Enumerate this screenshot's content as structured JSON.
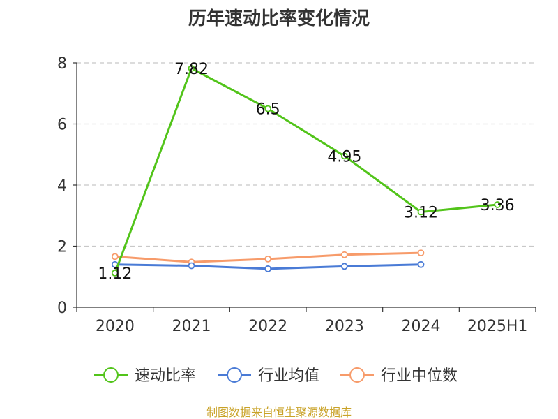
{
  "chart_data": {
    "type": "line",
    "title": "历年速动比率变化情况",
    "categories": [
      "2020",
      "2021",
      "2022",
      "2023",
      "2024",
      "2025H1"
    ],
    "ylim": [
      0,
      8
    ],
    "yticks": [
      0,
      2,
      4,
      6,
      8
    ],
    "grid": true,
    "legend_position": "bottom",
    "series": [
      {
        "name": "速动比率",
        "color": "#52c41a",
        "values": [
          1.12,
          7.82,
          6.5,
          4.95,
          3.12,
          3.36
        ],
        "labels": [
          "1.12",
          "7.82",
          "6.5",
          "4.95",
          "3.12",
          "3.36"
        ]
      },
      {
        "name": "行业均值",
        "color": "#4a7bd6",
        "values": [
          1.4,
          1.36,
          1.26,
          1.34,
          1.4,
          null
        ]
      },
      {
        "name": "行业中位数",
        "color": "#f79b6a",
        "values": [
          1.66,
          1.48,
          1.58,
          1.72,
          1.78,
          null
        ]
      }
    ]
  },
  "footer": {
    "source": "制图数据来自恒生聚源数据库"
  }
}
